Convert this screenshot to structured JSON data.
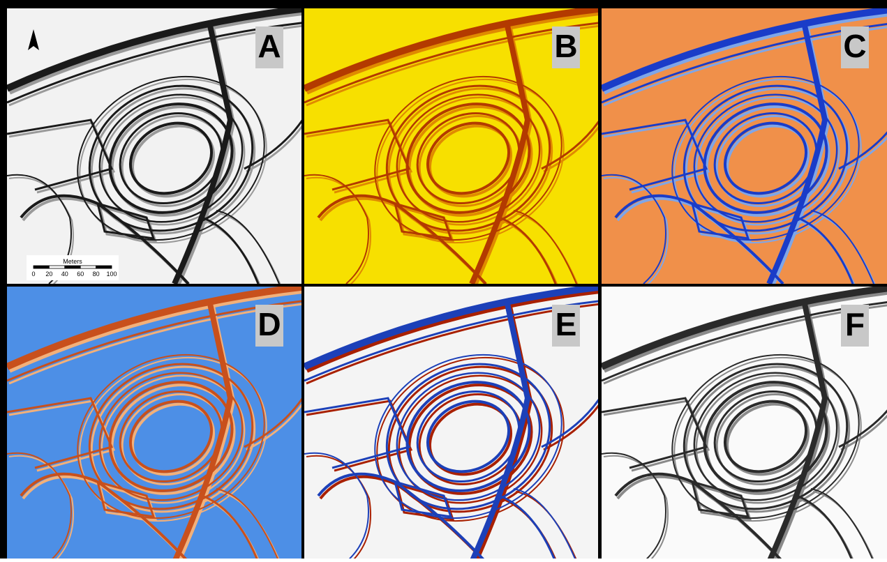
{
  "panels": [
    {
      "label": "A"
    },
    {
      "label": "B"
    },
    {
      "label": "C"
    },
    {
      "label": "D"
    },
    {
      "label": "E"
    },
    {
      "label": "F"
    }
  ],
  "scale_bar": {
    "title": "Meters",
    "ticks": [
      0,
      20,
      40,
      60,
      80,
      100
    ]
  }
}
